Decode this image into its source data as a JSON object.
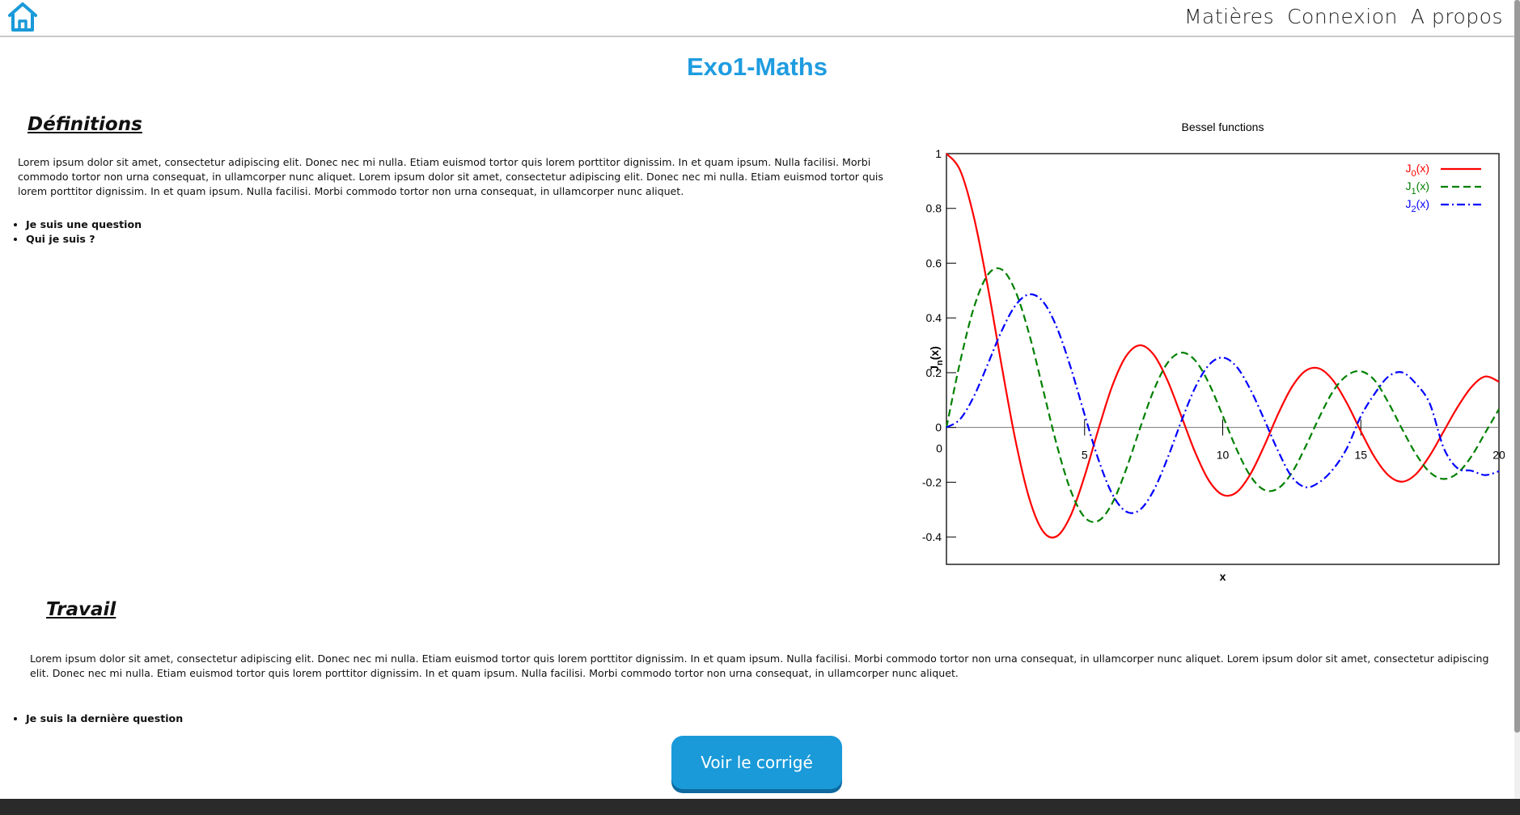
{
  "nav": {
    "home_icon": "home-icon",
    "items": [
      {
        "label": "Matières"
      },
      {
        "label": "Connexion"
      },
      {
        "label": "A propos"
      }
    ]
  },
  "page": {
    "title": "Exo1-Maths"
  },
  "definitions": {
    "title": "Définitions",
    "paragraph": "Lorem ipsum dolor sit amet, consectetur adipiscing elit. Donec nec mi nulla. Etiam euismod tortor quis lorem porttitor dignissim. In et quam ipsum. Nulla facilisi. Morbi commodo tortor non urna consequat, in ullamcorper nunc aliquet. Lorem ipsum dolor sit amet, consectetur adipiscing elit. Donec nec mi nulla. Etiam euismod tortor quis lorem porttitor dignissim. In et quam ipsum. Nulla facilisi. Morbi commodo tortor non urna consequat, in ullamcorper nunc aliquet.",
    "questions": [
      "Je suis une question",
      "Qui je suis ?"
    ]
  },
  "travail": {
    "title": "Travail",
    "paragraph": "Lorem ipsum dolor sit amet, consectetur adipiscing elit. Donec nec mi nulla. Etiam euismod tortor quis lorem porttitor dignissim. In et quam ipsum. Nulla facilisi. Morbi commodo tortor non urna consequat, in ullamcorper nunc aliquet. Lorem ipsum dolor sit amet, consectetur adipiscing elit. Donec nec mi nulla. Etiam euismod tortor quis lorem porttitor dignissim. In et quam ipsum. Nulla facilisi. Morbi commodo tortor non urna consequat, in ullamcorper nunc aliquet.",
    "questions": [
      "Je suis la dernière question"
    ]
  },
  "button": {
    "label": "Voir le corrigé"
  },
  "colors": {
    "accent": "#1f9ce0",
    "button": "#1a9ad9",
    "footer": "#2a2a2a"
  },
  "chart_data": {
    "type": "line",
    "title": "Bessel functions",
    "xlabel": "x",
    "ylabel": "J",
    "ylabel_sub": "n",
    "ylabel_suffix": "(x)",
    "xlim": [
      0,
      20
    ],
    "ylim": [
      -0.5,
      1
    ],
    "xticks": [
      0,
      5,
      10,
      15,
      20
    ],
    "yticks": [
      1,
      0.8,
      0.6,
      0.4,
      0.2,
      0,
      -0.2,
      -0.4
    ],
    "legend_position": "top-right",
    "grid": false,
    "series": [
      {
        "name": "J",
        "sub": "0",
        "suffix": "(x)",
        "color": "#ff0000",
        "dash": "solid",
        "x": [
          0,
          0.5,
          1,
          1.5,
          2,
          2.5,
          3,
          3.5,
          4,
          4.5,
          5,
          5.5,
          6,
          6.5,
          7,
          7.5,
          8,
          8.5,
          9,
          9.5,
          10,
          10.5,
          11,
          11.5,
          12,
          12.5,
          13,
          13.5,
          14,
          14.5,
          15,
          15.5,
          16,
          16.5,
          17,
          17.5,
          18,
          18.5,
          19,
          19.5,
          20
        ],
        "y": [
          1.0,
          0.938,
          0.765,
          0.512,
          0.224,
          -0.048,
          -0.26,
          -0.38,
          -0.397,
          -0.321,
          -0.178,
          -0.007,
          0.151,
          0.26,
          0.3,
          0.266,
          0.172,
          0.042,
          -0.09,
          -0.194,
          -0.246,
          -0.237,
          -0.171,
          -0.068,
          0.048,
          0.147,
          0.207,
          0.215,
          0.171,
          0.088,
          -0.014,
          -0.109,
          -0.175,
          -0.198,
          -0.17,
          -0.102,
          -0.014,
          0.074,
          0.147,
          0.186,
          0.167
        ]
      },
      {
        "name": "J",
        "sub": "1",
        "suffix": "(x)",
        "color": "#008000",
        "dash": "dashed",
        "x": [
          0,
          0.5,
          1,
          1.5,
          2,
          2.5,
          3,
          3.5,
          4,
          4.5,
          5,
          5.5,
          6,
          6.5,
          7,
          7.5,
          8,
          8.5,
          9,
          9.5,
          10,
          10.5,
          11,
          11.5,
          12,
          12.5,
          13,
          13.5,
          14,
          14.5,
          15,
          15.5,
          16,
          16.5,
          17,
          17.5,
          18,
          18.5,
          19,
          19.5,
          20
        ],
        "y": [
          0,
          0.242,
          0.44,
          0.558,
          0.577,
          0.497,
          0.339,
          0.137,
          -0.066,
          -0.231,
          -0.328,
          -0.341,
          -0.277,
          -0.154,
          -0.005,
          0.135,
          0.235,
          0.273,
          0.245,
          0.161,
          0.043,
          -0.079,
          -0.177,
          -0.228,
          -0.223,
          -0.166,
          -0.07,
          0.038,
          0.133,
          0.19,
          0.205,
          0.172,
          0.09,
          -0.007,
          -0.098,
          -0.164,
          -0.188,
          -0.167,
          -0.106,
          -0.02,
          0.067
        ]
      },
      {
        "name": "J",
        "sub": "2",
        "suffix": "(x)",
        "color": "#0000ff",
        "dash": "dashdot",
        "x": [
          0,
          0.5,
          1,
          1.5,
          2,
          2.5,
          3,
          3.5,
          4,
          4.5,
          5,
          5.5,
          6,
          6.5,
          7,
          7.5,
          8,
          8.5,
          9,
          9.5,
          10,
          10.5,
          11,
          11.5,
          12,
          12.5,
          13,
          13.5,
          14,
          14.5,
          15,
          15.5,
          16,
          16.5,
          17,
          17.5,
          18,
          18.5,
          19,
          19.5,
          20
        ],
        "y": [
          0,
          0.031,
          0.115,
          0.232,
          0.353,
          0.446,
          0.486,
          0.459,
          0.364,
          0.218,
          0.047,
          -0.117,
          -0.243,
          -0.307,
          -0.301,
          -0.23,
          -0.113,
          0.022,
          0.145,
          0.228,
          0.255,
          0.222,
          0.139,
          0.03,
          -0.085,
          -0.18,
          -0.218,
          -0.2,
          -0.152,
          -0.075,
          0.041,
          0.123,
          0.186,
          0.201,
          0.159,
          0.086,
          -0.075,
          -0.149,
          -0.158,
          -0.174,
          -0.16
        ]
      }
    ]
  }
}
